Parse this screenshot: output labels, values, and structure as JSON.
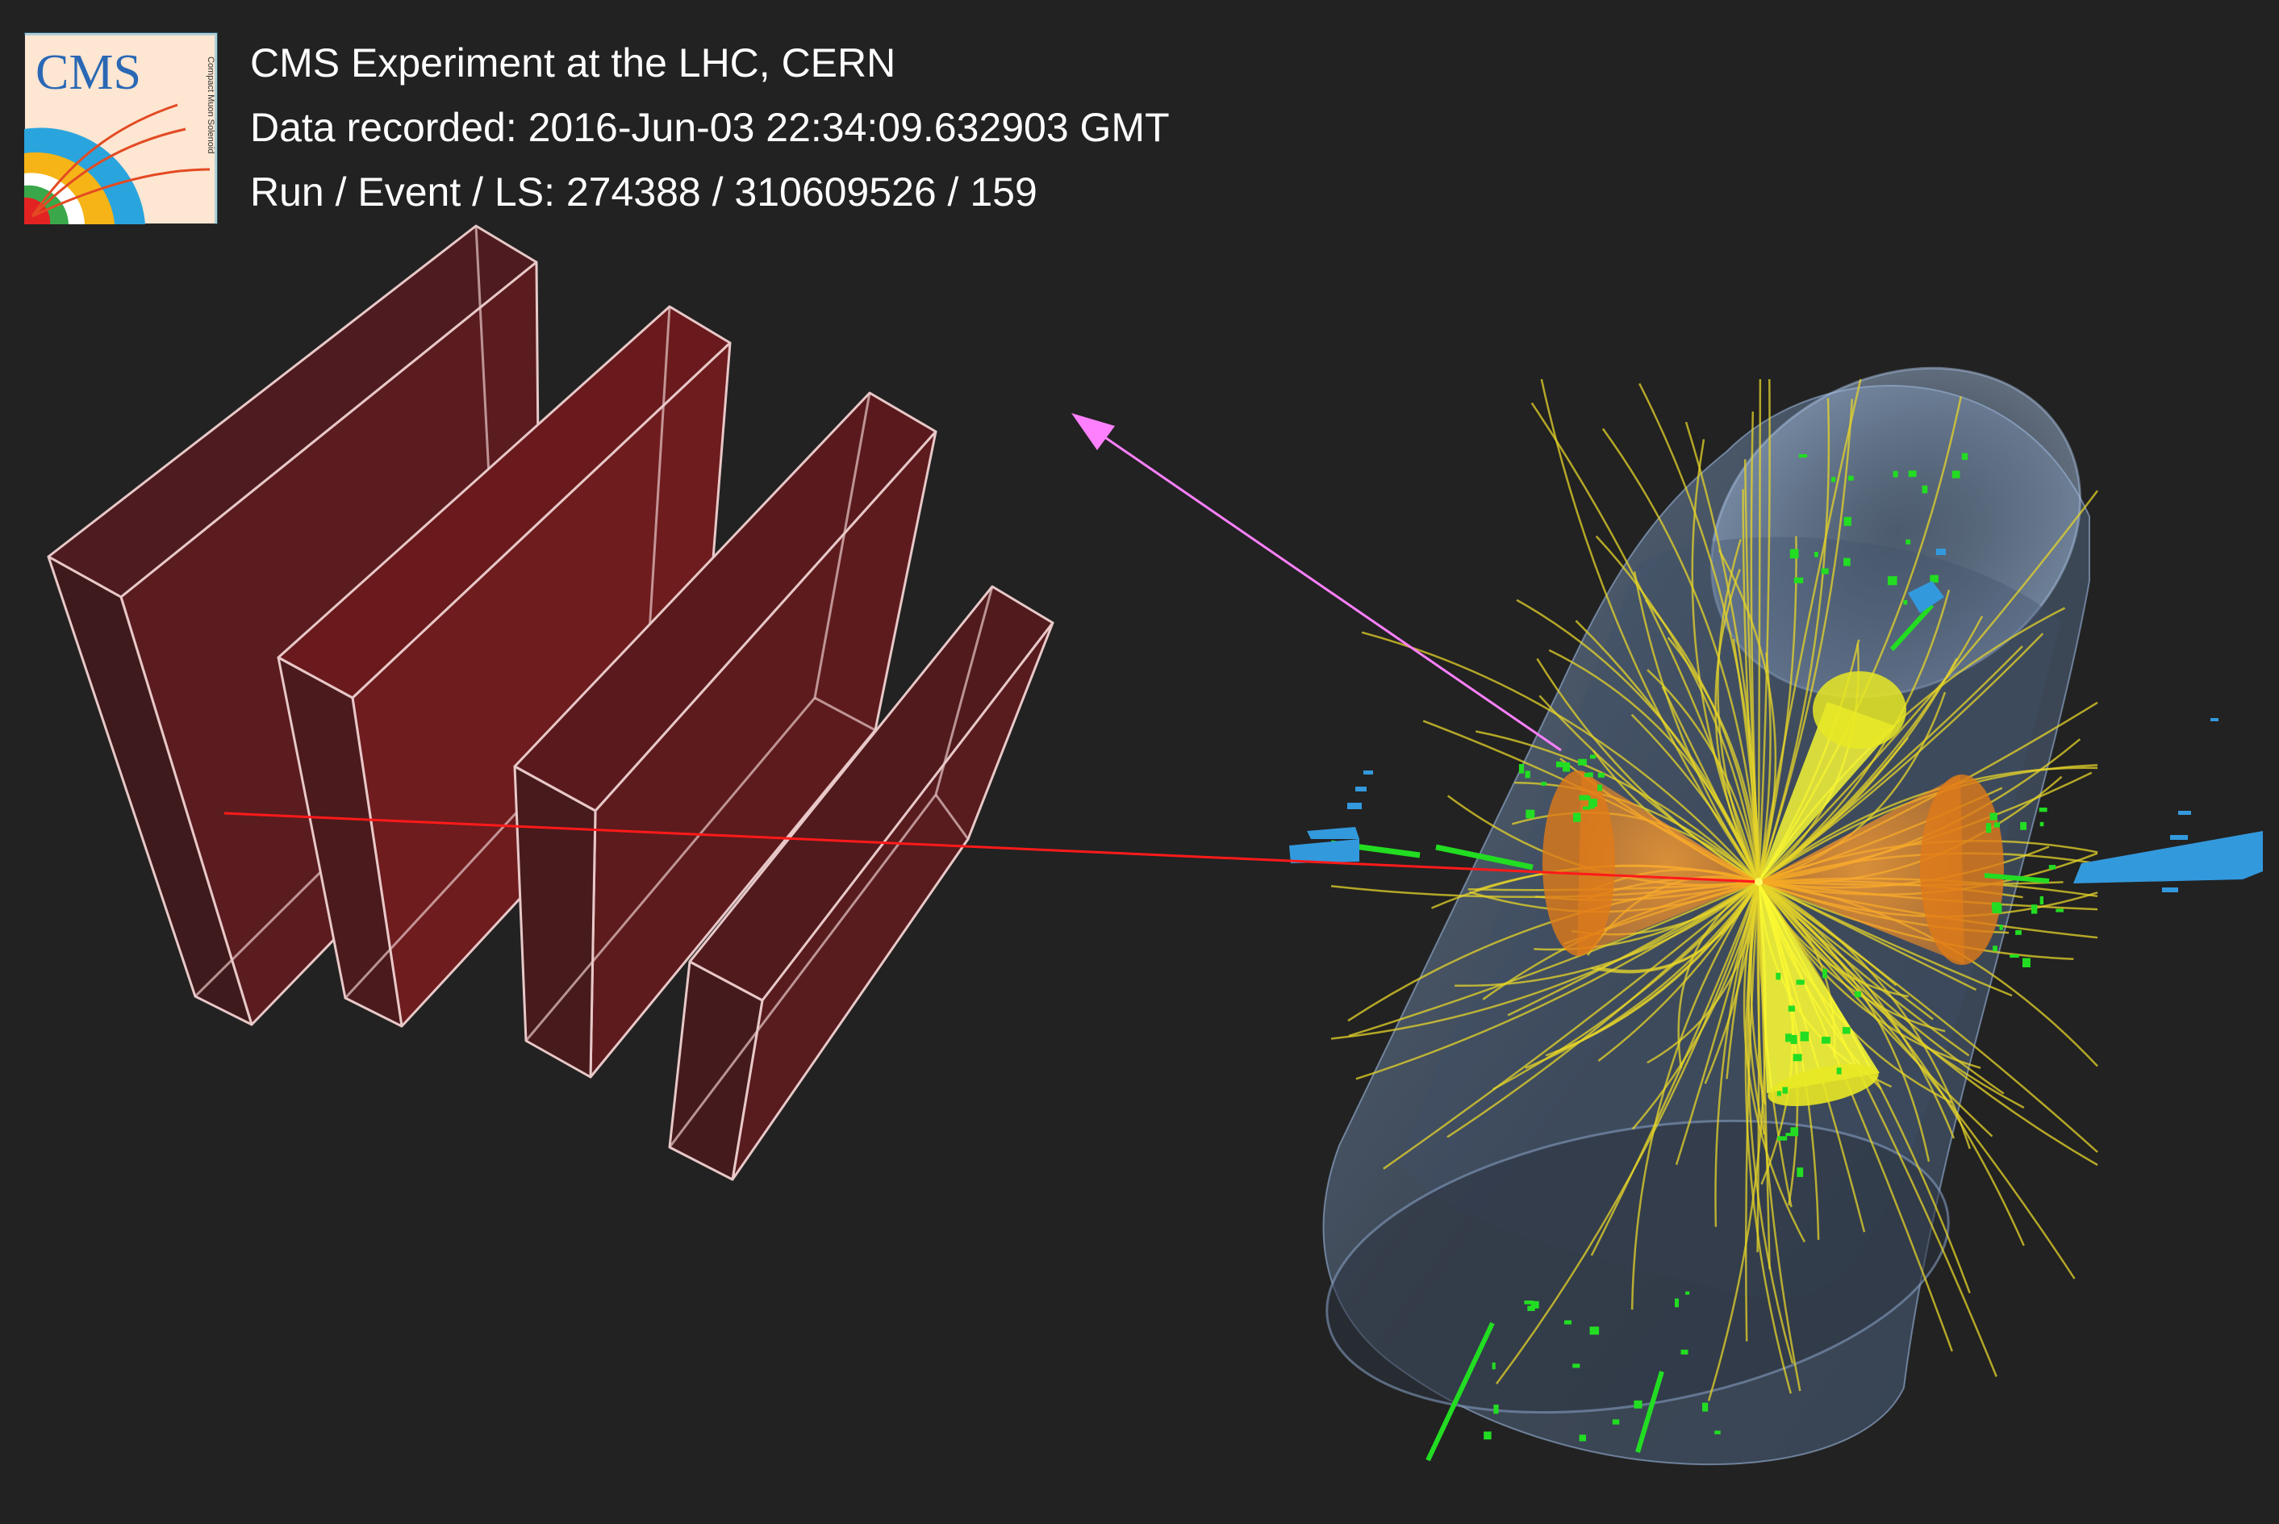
{
  "header": {
    "line1": "CMS Experiment at the LHC, CERN",
    "line2": "Data recorded: 2016-Jun-03 22:34:09.632903 GMT",
    "line3": "Run / Event / LS: 274388 / 310609526 / 159"
  },
  "logo": {
    "text": "CMS",
    "subtext": "Compact Muon Solenoid"
  },
  "colors": {
    "background": "#222222",
    "muon_chambers": "#7a1c1c",
    "muon_chamber_edges": "#e8c8c8",
    "muon_track": "#ff1a1a",
    "missing_energy_arrow": "#ff80ff",
    "tracks": "#e6d42a",
    "jets_orange": "#ff8c1a",
    "jets_yellow": "#ffff33",
    "hits_green": "#22dd22",
    "calo_blue": "#3399dd",
    "detector_barrel": "#8aa4c8"
  }
}
